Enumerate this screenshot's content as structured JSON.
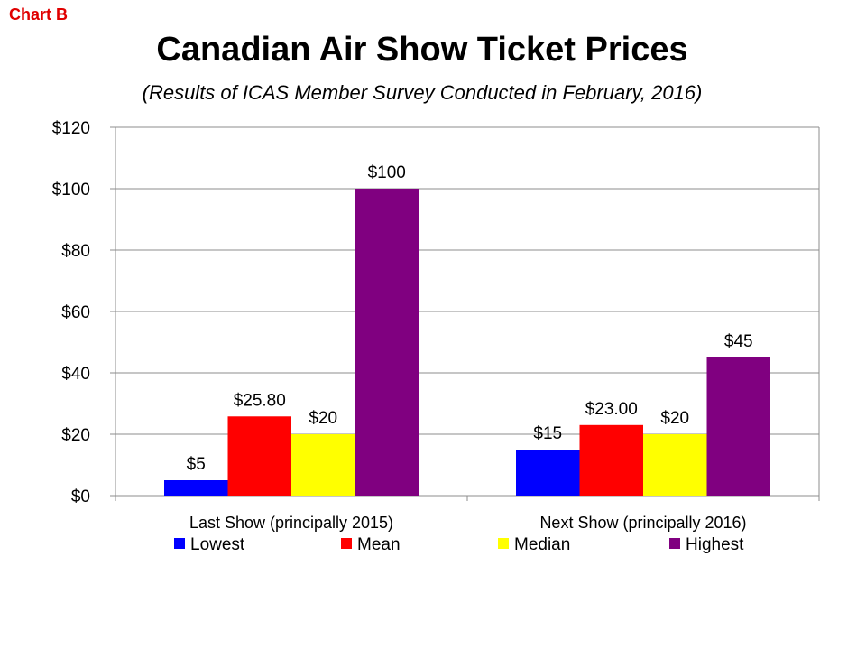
{
  "header": {
    "tag": "Chart B",
    "title": "Canadian Air Show Ticket Prices",
    "subtitle": "(Results of ICAS Member Survey Conducted in February, 2016)"
  },
  "chart_data": {
    "type": "bar",
    "categories": [
      "Last Show (principally 2015)",
      "Next Show (principally 2016)"
    ],
    "series": [
      {
        "name": "Lowest",
        "values": [
          5,
          15
        ],
        "labels": [
          "$5",
          "$15"
        ],
        "color": "#0000ff"
      },
      {
        "name": "Mean",
        "values": [
          25.8,
          23.0
        ],
        "labels": [
          "$25.80",
          "$23.00"
        ],
        "color": "#ff0000"
      },
      {
        "name": "Median",
        "values": [
          20,
          20
        ],
        "labels": [
          "$20",
          "$20"
        ],
        "color": "#ffff00"
      },
      {
        "name": "Highest",
        "values": [
          100,
          45
        ],
        "labels": [
          "$100",
          "$45"
        ],
        "color": "#800080"
      }
    ],
    "ylim": [
      0,
      120
    ],
    "yticks": [
      0,
      20,
      40,
      60,
      80,
      100,
      120
    ],
    "ytick_labels": [
      "$0",
      "$20",
      "$40",
      "$60",
      "$80",
      "$100",
      "$120"
    ],
    "grid": true,
    "legend_position": "bottom"
  }
}
